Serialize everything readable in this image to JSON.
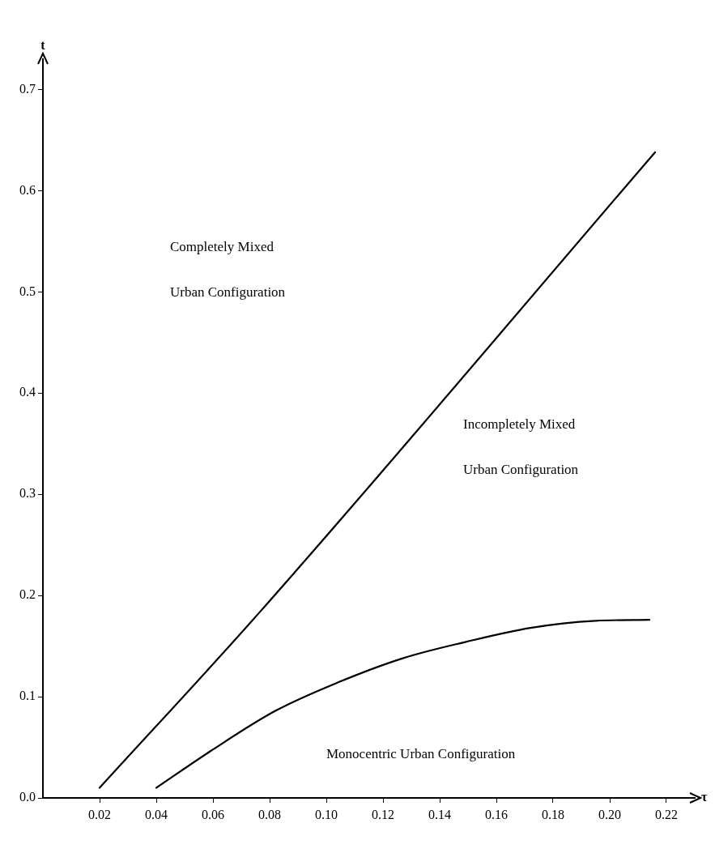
{
  "chart_data": {
    "type": "line",
    "xlabel": "τ",
    "ylabel": "t",
    "xlim": [
      0,
      0.23
    ],
    "ylim": [
      0,
      0.73
    ],
    "xticks": [
      0.02,
      0.04,
      0.06,
      0.08,
      {
        "value": 0.1,
        "label": "0.10"
      },
      0.12,
      0.14,
      0.16,
      0.18,
      {
        "value": 0.2,
        "label": "0.20"
      },
      0.22
    ],
    "yticks": [
      {
        "value": 0,
        "label": "0.0"
      },
      0.1,
      0.2,
      0.3,
      0.4,
      0.5,
      0.6,
      0.7
    ],
    "grid": false,
    "legend": false,
    "marker": "none",
    "line_style": "solid",
    "series": [
      {
        "color": "#000000",
        "x": [
          0.02,
          0.076,
          0.216
        ],
        "values": [
          0.01,
          0.182,
          0.638
        ]
      },
      {
        "color": "#000000",
        "x": [
          0.04,
          0.059,
          0.082,
          0.104,
          0.127,
          0.149,
          0.172,
          0.195,
          0.214
        ],
        "values": [
          0.01,
          0.046,
          0.086,
          0.114,
          0.138,
          0.154,
          0.168,
          0.175,
          0.176
        ]
      }
    ],
    "annotations": [
      "Completely Mixed Urban Configuration",
      "Incompletely Mixed Urban Configuration",
      "Monocentric Urban Configuration"
    ]
  }
}
